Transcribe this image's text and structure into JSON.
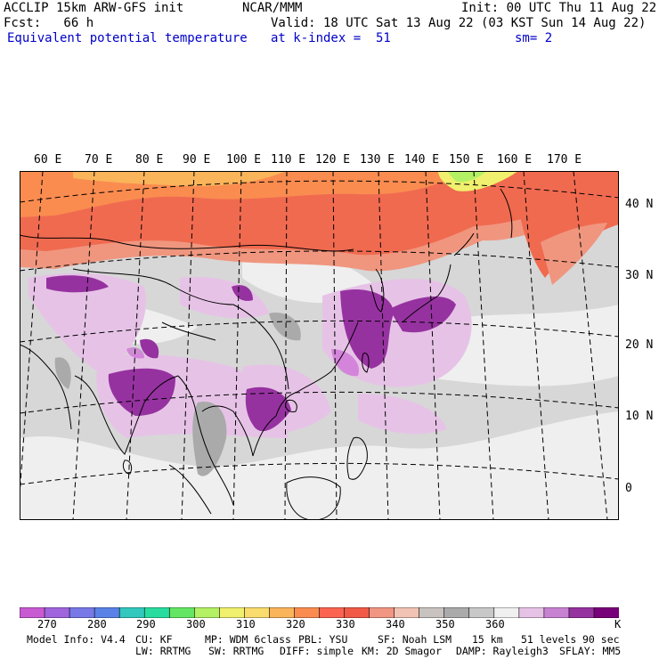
{
  "header": {
    "left_line1": "ACCLIP 15km ARW-GFS init",
    "left_line2": "Fcst:   66 h",
    "left_line3": "Equivalent potential temperature",
    "center_line1": "NCAR/MMM",
    "right_line1": "Init: 00 UTC Thu 11 Aug 22",
    "right_line2": "Valid: 18 UTC Sat 13 Aug 22 (03 KST Sun 14 Aug 22)",
    "level_text": "at k-index =  51",
    "smooth_text": "sm= 2"
  },
  "map": {
    "lon_labels": [
      "60 E",
      "70 E",
      "80 E",
      "90 E",
      "100 E",
      "110 E",
      "120 E",
      "130 E",
      "140 E",
      "150 E",
      "160 E",
      "170 E"
    ],
    "lat_labels": [
      "40 N",
      "30 N",
      "20 N",
      "10 N",
      "0"
    ]
  },
  "colorbar": {
    "colors": [
      "#c85ad2",
      "#a064dc",
      "#7878e6",
      "#5a82e6",
      "#32c8be",
      "#28dca0",
      "#64e664",
      "#b4f064",
      "#f0f06e",
      "#fadc6e",
      "#fab45a",
      "#fa8c50",
      "#fa6450",
      "#f05a46",
      "#f09682",
      "#f0c3b4",
      "#c8c3be",
      "#aaaaaa",
      "#c8c8c8",
      "#f0f0f0",
      "#e6c3e6",
      "#c882d2",
      "#9632a0",
      "#780078"
    ],
    "ticks": [
      "270",
      "280",
      "290",
      "300",
      "310",
      "320",
      "330",
      "340",
      "350",
      "360"
    ],
    "unit": "K"
  },
  "footer": {
    "line1": [
      "Model Info: V4.4",
      "CU: KF",
      "MP: WDM 6class",
      "PBL: YSU",
      "SF: Noah LSM",
      "15 km",
      "51 levels",
      "90 sec"
    ],
    "line2": [
      "LW: RRTMG",
      "SW: RRTMG",
      "DIFF: simple",
      "KM: 2D Smagor",
      "DAMP: Rayleigh3",
      "SFLAY: MM5"
    ]
  }
}
